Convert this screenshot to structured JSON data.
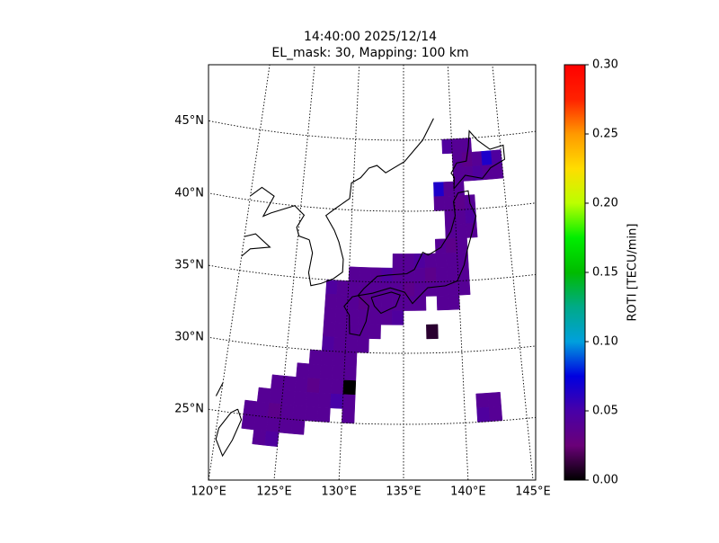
{
  "chart_data": {
    "type": "map",
    "title": "14:40:00 2025/12/14",
    "subtitle": "EL_mask: 30, Mapping: 100 km",
    "xticks": [
      {
        "value": 120,
        "label": "120°E"
      },
      {
        "value": 125,
        "label": "125°E"
      },
      {
        "value": 130,
        "label": "130°E"
      },
      {
        "value": 135,
        "label": "135°E"
      },
      {
        "value": 140,
        "label": "140°E"
      },
      {
        "value": 145,
        "label": "145°E"
      }
    ],
    "yticks": [
      {
        "value": 25,
        "label": "25°N"
      },
      {
        "value": 30,
        "label": "30°N"
      },
      {
        "value": 35,
        "label": "35°N"
      },
      {
        "value": 40,
        "label": "40°N"
      },
      {
        "value": 45,
        "label": "45°N"
      }
    ],
    "grid": true,
    "colorbar": {
      "label": "ROTI [TECU/min]",
      "clim": [
        0,
        0.3
      ],
      "ticks": [
        {
          "value": 0,
          "label": "0.00"
        },
        0.05,
        {
          "value": 0.1,
          "label": "0.10"
        },
        0.15,
        {
          "value": 0.2,
          "label": "0.20"
        },
        0.25,
        {
          "value": 0.3,
          "label": "0.30"
        }
      ],
      "colormap": [
        "#000000",
        "#6a0078",
        "#4800a8",
        "#0000e0",
        "#00a0dd",
        "#00aa88",
        "#00bb00",
        "#00ee00",
        "#bbff00",
        "#ffdd00",
        "#ff9900",
        "#ff2200",
        "#ff0000"
      ]
    },
    "cells": [
      [
        139,
        44,
        0.045
      ],
      [
        140,
        44,
        0.04
      ],
      [
        141,
        44,
        0.04
      ],
      [
        140,
        43,
        0.04
      ],
      [
        141,
        43,
        0.035
      ],
      [
        142,
        43,
        0.04
      ],
      [
        143,
        43,
        0.065
      ],
      [
        144,
        43,
        0.045
      ],
      [
        140,
        42,
        0.04
      ],
      [
        141,
        42,
        0.04
      ],
      [
        142,
        42,
        0.045
      ],
      [
        143,
        42,
        0.04
      ],
      [
        144,
        42,
        0.04
      ],
      [
        138,
        41,
        0.065
      ],
      [
        139,
        41,
        0.04
      ],
      [
        140,
        41,
        0.04
      ],
      [
        138,
        40,
        0.04
      ],
      [
        139,
        40,
        0.04
      ],
      [
        140,
        40,
        0.035
      ],
      [
        141,
        40,
        0.04
      ],
      [
        139,
        39,
        0.04
      ],
      [
        140,
        39,
        0.04
      ],
      [
        141,
        39,
        0.045
      ],
      [
        139,
        38,
        0.04
      ],
      [
        140,
        38,
        0.04
      ],
      [
        141,
        38,
        0.04
      ],
      [
        138,
        37,
        0.04
      ],
      [
        139,
        37,
        0.035
      ],
      [
        140,
        37,
        0.04
      ],
      [
        134,
        36,
        0.04
      ],
      [
        135,
        36,
        0.04
      ],
      [
        136,
        36,
        0.045
      ],
      [
        137,
        36,
        0.04
      ],
      [
        138,
        36,
        0.04
      ],
      [
        139,
        36,
        0.04
      ],
      [
        140,
        36,
        0.04
      ],
      [
        130,
        35,
        0.04
      ],
      [
        131,
        35,
        0.04
      ],
      [
        132,
        35,
        0.04
      ],
      [
        133,
        35,
        0.045
      ],
      [
        134,
        35,
        0.04
      ],
      [
        135,
        35,
        0.04
      ],
      [
        136,
        35,
        0.04
      ],
      [
        137,
        35,
        0.035
      ],
      [
        138,
        35,
        0.04
      ],
      [
        139,
        35,
        0.04
      ],
      [
        140,
        35,
        0.04
      ],
      [
        128,
        34,
        0.045
      ],
      [
        129,
        34,
        0.04
      ],
      [
        130,
        34,
        0.04
      ],
      [
        131,
        34,
        0.04
      ],
      [
        132,
        34,
        0.04
      ],
      [
        133,
        34,
        0.04
      ],
      [
        134,
        34,
        0.04
      ],
      [
        135,
        34,
        0.035
      ],
      [
        136,
        34,
        0.04
      ],
      [
        137,
        34,
        0.04
      ],
      [
        138,
        34,
        0.04
      ],
      [
        139,
        34,
        0.04
      ],
      [
        140,
        34,
        0.04
      ],
      [
        128,
        33,
        0.04
      ],
      [
        129,
        33,
        0.04
      ],
      [
        130,
        33,
        0.04
      ],
      [
        131,
        33,
        0.035
      ],
      [
        132,
        33,
        0.04
      ],
      [
        133,
        33,
        0.04
      ],
      [
        134,
        33,
        0.04
      ],
      [
        135,
        33,
        0.04
      ],
      [
        136,
        33,
        0.04
      ],
      [
        138,
        33,
        0.04
      ],
      [
        139,
        33,
        0.04
      ],
      [
        128,
        32,
        0.04
      ],
      [
        129,
        32,
        0.04
      ],
      [
        130,
        32,
        0.04
      ],
      [
        131,
        32,
        0.04
      ],
      [
        132,
        32,
        0.04
      ],
      [
        133,
        32,
        0.04
      ],
      [
        134,
        32,
        0.045
      ],
      [
        137,
        31,
        0.01
      ],
      [
        128,
        31,
        0.04
      ],
      [
        129,
        31,
        0.04
      ],
      [
        130,
        31,
        0.04
      ],
      [
        131,
        31,
        0.04
      ],
      [
        132,
        31,
        0.04
      ],
      [
        128,
        30,
        0.045
      ],
      [
        129,
        30,
        0.04
      ],
      [
        130,
        30,
        0.04
      ],
      [
        131,
        30,
        0.04
      ],
      [
        127,
        29,
        0.04
      ],
      [
        128,
        29,
        0.04
      ],
      [
        129,
        29,
        0.04
      ],
      [
        130,
        29,
        0.04
      ],
      [
        126,
        28,
        0.04
      ],
      [
        127,
        28,
        0.04
      ],
      [
        128,
        28,
        0.04
      ],
      [
        129,
        28,
        0.04
      ],
      [
        130,
        28,
        0.04
      ],
      [
        124,
        27,
        0.04
      ],
      [
        125,
        27,
        0.04
      ],
      [
        126,
        27,
        0.04
      ],
      [
        127,
        27,
        0.035
      ],
      [
        128,
        27,
        0.04
      ],
      [
        129,
        27,
        0.04
      ],
      [
        130,
        27,
        0
      ],
      [
        123,
        26,
        0.04
      ],
      [
        124,
        26,
        0.04
      ],
      [
        125,
        26,
        0.04
      ],
      [
        126,
        26,
        0.04
      ],
      [
        127,
        26,
        0.04
      ],
      [
        128,
        26,
        0.04
      ],
      [
        129,
        26,
        0.05
      ],
      [
        130,
        26,
        0.04
      ],
      [
        122,
        25,
        0.04
      ],
      [
        123,
        25,
        0.04
      ],
      [
        124,
        25,
        0.035
      ],
      [
        125,
        25,
        0.04
      ],
      [
        126,
        25,
        0.04
      ],
      [
        127,
        25,
        0.04
      ],
      [
        128,
        25,
        0.04
      ],
      [
        130,
        25,
        0.04
      ],
      [
        122,
        24,
        0.04
      ],
      [
        123,
        24,
        0.04
      ],
      [
        124,
        24,
        0.04
      ],
      [
        125,
        24,
        0.04
      ],
      [
        126,
        24,
        0.04
      ],
      [
        123,
        23,
        0.04
      ],
      [
        124,
        23,
        0.045
      ],
      [
        141,
        26,
        0.04
      ],
      [
        142,
        26,
        0.04
      ],
      [
        141,
        25,
        0.045
      ],
      [
        142,
        25,
        0.04
      ]
    ]
  }
}
